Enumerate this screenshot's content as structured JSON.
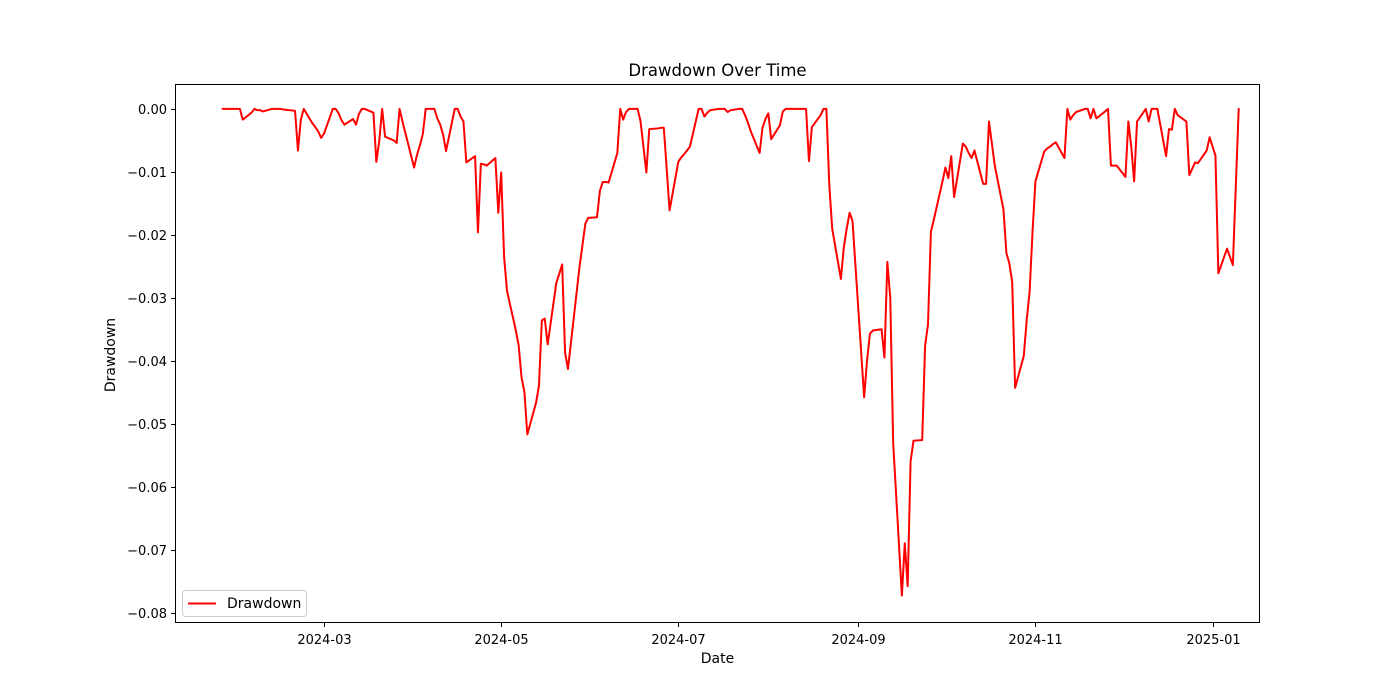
{
  "chart_data": {
    "type": "line",
    "title": "Drawdown Over Time",
    "xlabel": "Date",
    "ylabel": "Drawdown",
    "xlim": [
      "2024-01-10",
      "2025-01-17"
    ],
    "ylim": [
      -0.0815,
      0.0038
    ],
    "x_ticks": [
      "2024-03-01",
      "2024-05-01",
      "2024-07-01",
      "2024-09-01",
      "2024-11-01",
      "2025-01-01"
    ],
    "x_tick_labels": [
      "2024-03",
      "2024-05",
      "2024-07",
      "2024-09",
      "2024-11",
      "2025-01"
    ],
    "y_ticks": [
      0.0,
      -0.01,
      -0.02,
      -0.03,
      -0.04,
      -0.05,
      -0.06,
      -0.07,
      -0.08
    ],
    "y_tick_labels": [
      "0.00",
      "−0.01",
      "−0.02",
      "−0.03",
      "−0.04",
      "−0.05",
      "−0.06",
      "−0.07",
      "−0.08"
    ],
    "grid": false,
    "legend_position": "lower-left",
    "series": [
      {
        "name": "Drawdown",
        "color": "#ff0000",
        "points": [
          [
            "2024-01-26",
            0.0
          ],
          [
            "2024-01-29",
            0.0
          ],
          [
            "2024-01-30",
            0.0
          ],
          [
            "2024-01-31",
            0.0
          ],
          [
            "2024-02-01",
            0.0
          ],
          [
            "2024-02-02",
            -0.0017
          ],
          [
            "2024-02-05",
            -0.0006
          ],
          [
            "2024-02-06",
            0.0
          ],
          [
            "2024-02-07",
            -0.0002
          ],
          [
            "2024-02-08",
            -0.0002
          ],
          [
            "2024-02-09",
            -0.0004
          ],
          [
            "2024-02-12",
            0.0
          ],
          [
            "2024-02-13",
            0.0
          ],
          [
            "2024-02-14",
            0.0
          ],
          [
            "2024-02-15",
            0.0
          ],
          [
            "2024-02-16",
            -0.0001
          ],
          [
            "2024-02-20",
            -0.0003
          ],
          [
            "2024-02-21",
            -0.0066
          ],
          [
            "2024-02-22",
            -0.0017
          ],
          [
            "2024-02-23",
            0.0
          ],
          [
            "2024-02-26",
            -0.0023
          ],
          [
            "2024-02-27",
            -0.0029
          ],
          [
            "2024-02-28",
            -0.0036
          ],
          [
            "2024-02-29",
            -0.0046
          ],
          [
            "2024-03-01",
            -0.0039
          ],
          [
            "2024-03-04",
            0.0
          ],
          [
            "2024-03-05",
            0.0
          ],
          [
            "2024-03-06",
            -0.0007
          ],
          [
            "2024-03-07",
            -0.0018
          ],
          [
            "2024-03-08",
            -0.0025
          ],
          [
            "2024-03-11",
            -0.0016
          ],
          [
            "2024-03-12",
            -0.0025
          ],
          [
            "2024-03-13",
            -0.0008
          ],
          [
            "2024-03-14",
            0.0
          ],
          [
            "2024-03-15",
            0.0
          ],
          [
            "2024-03-18",
            -0.0006
          ],
          [
            "2024-03-19",
            -0.0084
          ],
          [
            "2024-03-20",
            -0.0051
          ],
          [
            "2024-03-21",
            0.0
          ],
          [
            "2024-03-22",
            -0.0044
          ],
          [
            "2024-03-25",
            -0.005
          ],
          [
            "2024-03-26",
            -0.0054
          ],
          [
            "2024-03-27",
            0.0
          ],
          [
            "2024-03-28",
            -0.002
          ],
          [
            "2024-04-01",
            -0.0093
          ],
          [
            "2024-04-02",
            -0.0073
          ],
          [
            "2024-04-03",
            -0.0058
          ],
          [
            "2024-04-04",
            -0.004
          ],
          [
            "2024-04-05",
            0.0
          ],
          [
            "2024-04-08",
            0.0
          ],
          [
            "2024-04-09",
            -0.0015
          ],
          [
            "2024-04-10",
            -0.0025
          ],
          [
            "2024-04-11",
            -0.0041
          ],
          [
            "2024-04-12",
            -0.0067
          ],
          [
            "2024-04-15",
            0.0
          ],
          [
            "2024-04-16",
            0.0
          ],
          [
            "2024-04-17",
            -0.0012
          ],
          [
            "2024-04-18",
            -0.002
          ],
          [
            "2024-04-19",
            -0.0085
          ],
          [
            "2024-04-22",
            -0.0075
          ],
          [
            "2024-04-23",
            -0.0196
          ],
          [
            "2024-04-24",
            -0.0087
          ],
          [
            "2024-04-25",
            -0.0088
          ],
          [
            "2024-04-26",
            -0.009
          ],
          [
            "2024-04-29",
            -0.0078
          ],
          [
            "2024-04-30",
            -0.0165
          ],
          [
            "2024-05-01",
            -0.0101
          ],
          [
            "2024-05-02",
            -0.0235
          ],
          [
            "2024-05-03",
            -0.0289
          ],
          [
            "2024-05-06",
            -0.0351
          ],
          [
            "2024-05-07",
            -0.0375
          ],
          [
            "2024-05-08",
            -0.0426
          ],
          [
            "2024-05-09",
            -0.045
          ],
          [
            "2024-05-10",
            -0.0517
          ],
          [
            "2024-05-13",
            -0.0467
          ],
          [
            "2024-05-14",
            -0.044
          ],
          [
            "2024-05-15",
            -0.0336
          ],
          [
            "2024-05-16",
            -0.0333
          ],
          [
            "2024-05-17",
            -0.0374
          ],
          [
            "2024-05-20",
            -0.0276
          ],
          [
            "2024-05-21",
            -0.0262
          ],
          [
            "2024-05-22",
            -0.0247
          ],
          [
            "2024-05-23",
            -0.0387
          ],
          [
            "2024-05-24",
            -0.0413
          ],
          [
            "2024-05-28",
            -0.025
          ],
          [
            "2024-05-29",
            -0.0216
          ],
          [
            "2024-05-30",
            -0.0182
          ],
          [
            "2024-05-31",
            -0.0173
          ],
          [
            "2024-06-03",
            -0.0172
          ],
          [
            "2024-06-04",
            -0.013
          ],
          [
            "2024-06-05",
            -0.0116
          ],
          [
            "2024-06-06",
            -0.0116
          ],
          [
            "2024-06-07",
            -0.0117
          ],
          [
            "2024-06-10",
            -0.007
          ],
          [
            "2024-06-11",
            0.0
          ],
          [
            "2024-06-12",
            -0.0017
          ],
          [
            "2024-06-13",
            -0.0005
          ],
          [
            "2024-06-14",
            0.0
          ],
          [
            "2024-06-17",
            0.0
          ],
          [
            "2024-06-18",
            -0.002
          ],
          [
            "2024-06-20",
            -0.0101
          ],
          [
            "2024-06-21",
            -0.0032
          ],
          [
            "2024-06-24",
            -0.0031
          ],
          [
            "2024-06-25",
            -0.003
          ],
          [
            "2024-06-26",
            -0.003
          ],
          [
            "2024-06-27",
            -0.0095
          ],
          [
            "2024-06-28",
            -0.0161
          ],
          [
            "2024-07-01",
            -0.0084
          ],
          [
            "2024-07-02",
            -0.0077
          ],
          [
            "2024-07-03",
            -0.0072
          ],
          [
            "2024-07-05",
            -0.006
          ],
          [
            "2024-07-08",
            0.0
          ],
          [
            "2024-07-09",
            0.0
          ],
          [
            "2024-07-10",
            -0.0012
          ],
          [
            "2024-07-11",
            -0.0006
          ],
          [
            "2024-07-12",
            -0.0002
          ],
          [
            "2024-07-15",
            0.0
          ],
          [
            "2024-07-16",
            0.0
          ],
          [
            "2024-07-17",
            0.0
          ],
          [
            "2024-07-18",
            -0.0005
          ],
          [
            "2024-07-19",
            -0.0002
          ],
          [
            "2024-07-22",
            0.0
          ],
          [
            "2024-07-23",
            0.0
          ],
          [
            "2024-07-24",
            -0.001
          ],
          [
            "2024-07-25",
            -0.0022
          ],
          [
            "2024-07-26",
            -0.0036
          ],
          [
            "2024-07-29",
            -0.007
          ],
          [
            "2024-07-30",
            -0.003
          ],
          [
            "2024-07-31",
            -0.0016
          ],
          [
            "2024-08-01",
            -0.0007
          ],
          [
            "2024-08-02",
            -0.0048
          ],
          [
            "2024-08-05",
            -0.0026
          ],
          [
            "2024-08-06",
            -0.0004
          ],
          [
            "2024-08-07",
            0.0
          ],
          [
            "2024-08-08",
            0.0
          ],
          [
            "2024-08-09",
            0.0
          ],
          [
            "2024-08-12",
            0.0
          ],
          [
            "2024-08-13",
            0.0
          ],
          [
            "2024-08-14",
            0.0
          ],
          [
            "2024-08-15",
            -0.0083
          ],
          [
            "2024-08-16",
            -0.0029
          ],
          [
            "2024-08-19",
            -0.001
          ],
          [
            "2024-08-20",
            0.0
          ],
          [
            "2024-08-21",
            0.0
          ],
          [
            "2024-08-22",
            -0.012
          ],
          [
            "2024-08-23",
            -0.019
          ],
          [
            "2024-08-26",
            -0.027
          ],
          [
            "2024-08-27",
            -0.022
          ],
          [
            "2024-08-28",
            -0.019
          ],
          [
            "2024-08-29",
            -0.0165
          ],
          [
            "2024-08-30",
            -0.0178
          ],
          [
            "2024-09-03",
            -0.0458
          ],
          [
            "2024-09-04",
            -0.04
          ],
          [
            "2024-09-05",
            -0.0357
          ],
          [
            "2024-09-06",
            -0.0352
          ],
          [
            "2024-09-09",
            -0.035
          ],
          [
            "2024-09-10",
            -0.0395
          ],
          [
            "2024-09-11",
            -0.0243
          ],
          [
            "2024-09-12",
            -0.03
          ],
          [
            "2024-09-13",
            -0.053
          ],
          [
            "2024-09-16",
            -0.0773
          ],
          [
            "2024-09-17",
            -0.069
          ],
          [
            "2024-09-18",
            -0.0758
          ],
          [
            "2024-09-19",
            -0.056
          ],
          [
            "2024-09-20",
            -0.0527
          ],
          [
            "2024-09-23",
            -0.0526
          ],
          [
            "2024-09-24",
            -0.0376
          ],
          [
            "2024-09-25",
            -0.0342
          ],
          [
            "2024-09-26",
            -0.0195
          ],
          [
            "2024-09-27",
            -0.0176
          ],
          [
            "2024-09-30",
            -0.0115
          ],
          [
            "2024-10-01",
            -0.0093
          ],
          [
            "2024-10-02",
            -0.011
          ],
          [
            "2024-10-03",
            -0.0075
          ],
          [
            "2024-10-04",
            -0.014
          ],
          [
            "2024-10-07",
            -0.0055
          ],
          [
            "2024-10-08",
            -0.006
          ],
          [
            "2024-10-09",
            -0.007
          ],
          [
            "2024-10-10",
            -0.0078
          ],
          [
            "2024-10-11",
            -0.0066
          ],
          [
            "2024-10-14",
            -0.0119
          ],
          [
            "2024-10-15",
            -0.0119
          ],
          [
            "2024-10-16",
            -0.002
          ],
          [
            "2024-10-17",
            -0.0055
          ],
          [
            "2024-10-18",
            -0.009
          ],
          [
            "2024-10-21",
            -0.016
          ],
          [
            "2024-10-22",
            -0.0229
          ],
          [
            "2024-10-23",
            -0.0245
          ],
          [
            "2024-10-24",
            -0.0275
          ],
          [
            "2024-10-25",
            -0.0443
          ],
          [
            "2024-10-28",
            -0.0392
          ],
          [
            "2024-10-29",
            -0.0335
          ],
          [
            "2024-10-30",
            -0.029
          ],
          [
            "2024-10-31",
            -0.0195
          ],
          [
            "2024-11-01",
            -0.0115
          ],
          [
            "2024-11-04",
            -0.0068
          ],
          [
            "2024-11-05",
            -0.0063
          ],
          [
            "2024-11-06",
            -0.006
          ],
          [
            "2024-11-07",
            -0.0056
          ],
          [
            "2024-11-08",
            -0.0053
          ],
          [
            "2024-11-11",
            -0.0078
          ],
          [
            "2024-11-12",
            0.0
          ],
          [
            "2024-11-13",
            -0.0017
          ],
          [
            "2024-11-14",
            -0.001
          ],
          [
            "2024-11-15",
            -0.0005
          ],
          [
            "2024-11-18",
            0.0
          ],
          [
            "2024-11-19",
            0.0
          ],
          [
            "2024-11-20",
            -0.0015
          ],
          [
            "2024-11-21",
            0.0
          ],
          [
            "2024-11-22",
            -0.0015
          ],
          [
            "2024-11-25",
            -0.0004
          ],
          [
            "2024-11-26",
            0.0
          ],
          [
            "2024-11-27",
            -0.009
          ],
          [
            "2024-11-29",
            -0.009
          ],
          [
            "2024-12-02",
            -0.0108
          ],
          [
            "2024-12-03",
            -0.002
          ],
          [
            "2024-12-04",
            -0.006
          ],
          [
            "2024-12-05",
            -0.0115
          ],
          [
            "2024-12-06",
            -0.002
          ],
          [
            "2024-12-09",
            0.0
          ],
          [
            "2024-12-10",
            -0.002
          ],
          [
            "2024-12-11",
            0.0
          ],
          [
            "2024-12-12",
            0.0
          ],
          [
            "2024-12-13",
            0.0
          ],
          [
            "2024-12-16",
            -0.0075
          ],
          [
            "2024-12-17",
            -0.0032
          ],
          [
            "2024-12-18",
            -0.0033
          ],
          [
            "2024-12-19",
            0.0
          ],
          [
            "2024-12-20",
            -0.001
          ],
          [
            "2024-12-23",
            -0.002
          ],
          [
            "2024-12-24",
            -0.0105
          ],
          [
            "2024-12-26",
            -0.0085
          ],
          [
            "2024-12-27",
            -0.0086
          ],
          [
            "2024-12-30",
            -0.0066
          ],
          [
            "2024-12-31",
            -0.0045
          ],
          [
            "2025-01-02",
            -0.0074
          ],
          [
            "2025-01-03",
            -0.0261
          ],
          [
            "2025-01-06",
            -0.0222
          ],
          [
            "2025-01-08",
            -0.0248
          ],
          [
            "2025-01-10",
            0.0
          ]
        ]
      }
    ]
  }
}
